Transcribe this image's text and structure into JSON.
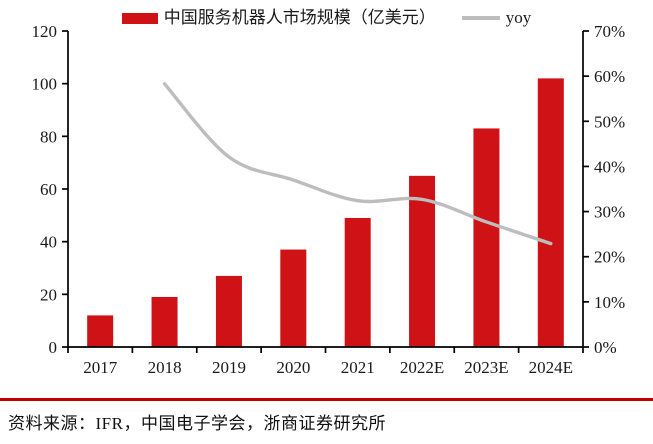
{
  "legend": {
    "bar_label": "中国服务机器人市场规模（亿美元）",
    "line_label": "yoy"
  },
  "footer": {
    "source_text": "资料来源：IFR，中国电子学会，浙商证券研究所"
  },
  "colors": {
    "bar": "#ce1215",
    "line": "#bdbdbd",
    "rule": "#c00000",
    "axis": "#000000",
    "text": "#1a1a1a"
  },
  "chart_data": {
    "type": "bar",
    "title": "",
    "categories": [
      "2017",
      "2018",
      "2019",
      "2020",
      "2021",
      "2022E",
      "2023E",
      "2024E"
    ],
    "series": [
      {
        "name": "中国服务机器人市场规模（亿美元）",
        "type": "bar",
        "axis": "left",
        "values": [
          12,
          19,
          27,
          37,
          49,
          65,
          83,
          102
        ]
      },
      {
        "name": "yoy",
        "type": "line",
        "axis": "right",
        "unit": "%",
        "values": [
          null,
          58.3,
          42.1,
          37.0,
          32.4,
          32.7,
          27.7,
          22.9
        ]
      }
    ],
    "left_axis": {
      "min": 0,
      "max": 120,
      "step": 20,
      "tick_labels": [
        "0",
        "20",
        "40",
        "60",
        "80",
        "100",
        "120"
      ]
    },
    "right_axis": {
      "min": 0,
      "max": 70,
      "step": 10,
      "tick_labels": [
        "0%",
        "10%",
        "20%",
        "30%",
        "40%",
        "50%",
        "60%",
        "70%"
      ]
    },
    "grid": false,
    "legend_position": "top"
  }
}
